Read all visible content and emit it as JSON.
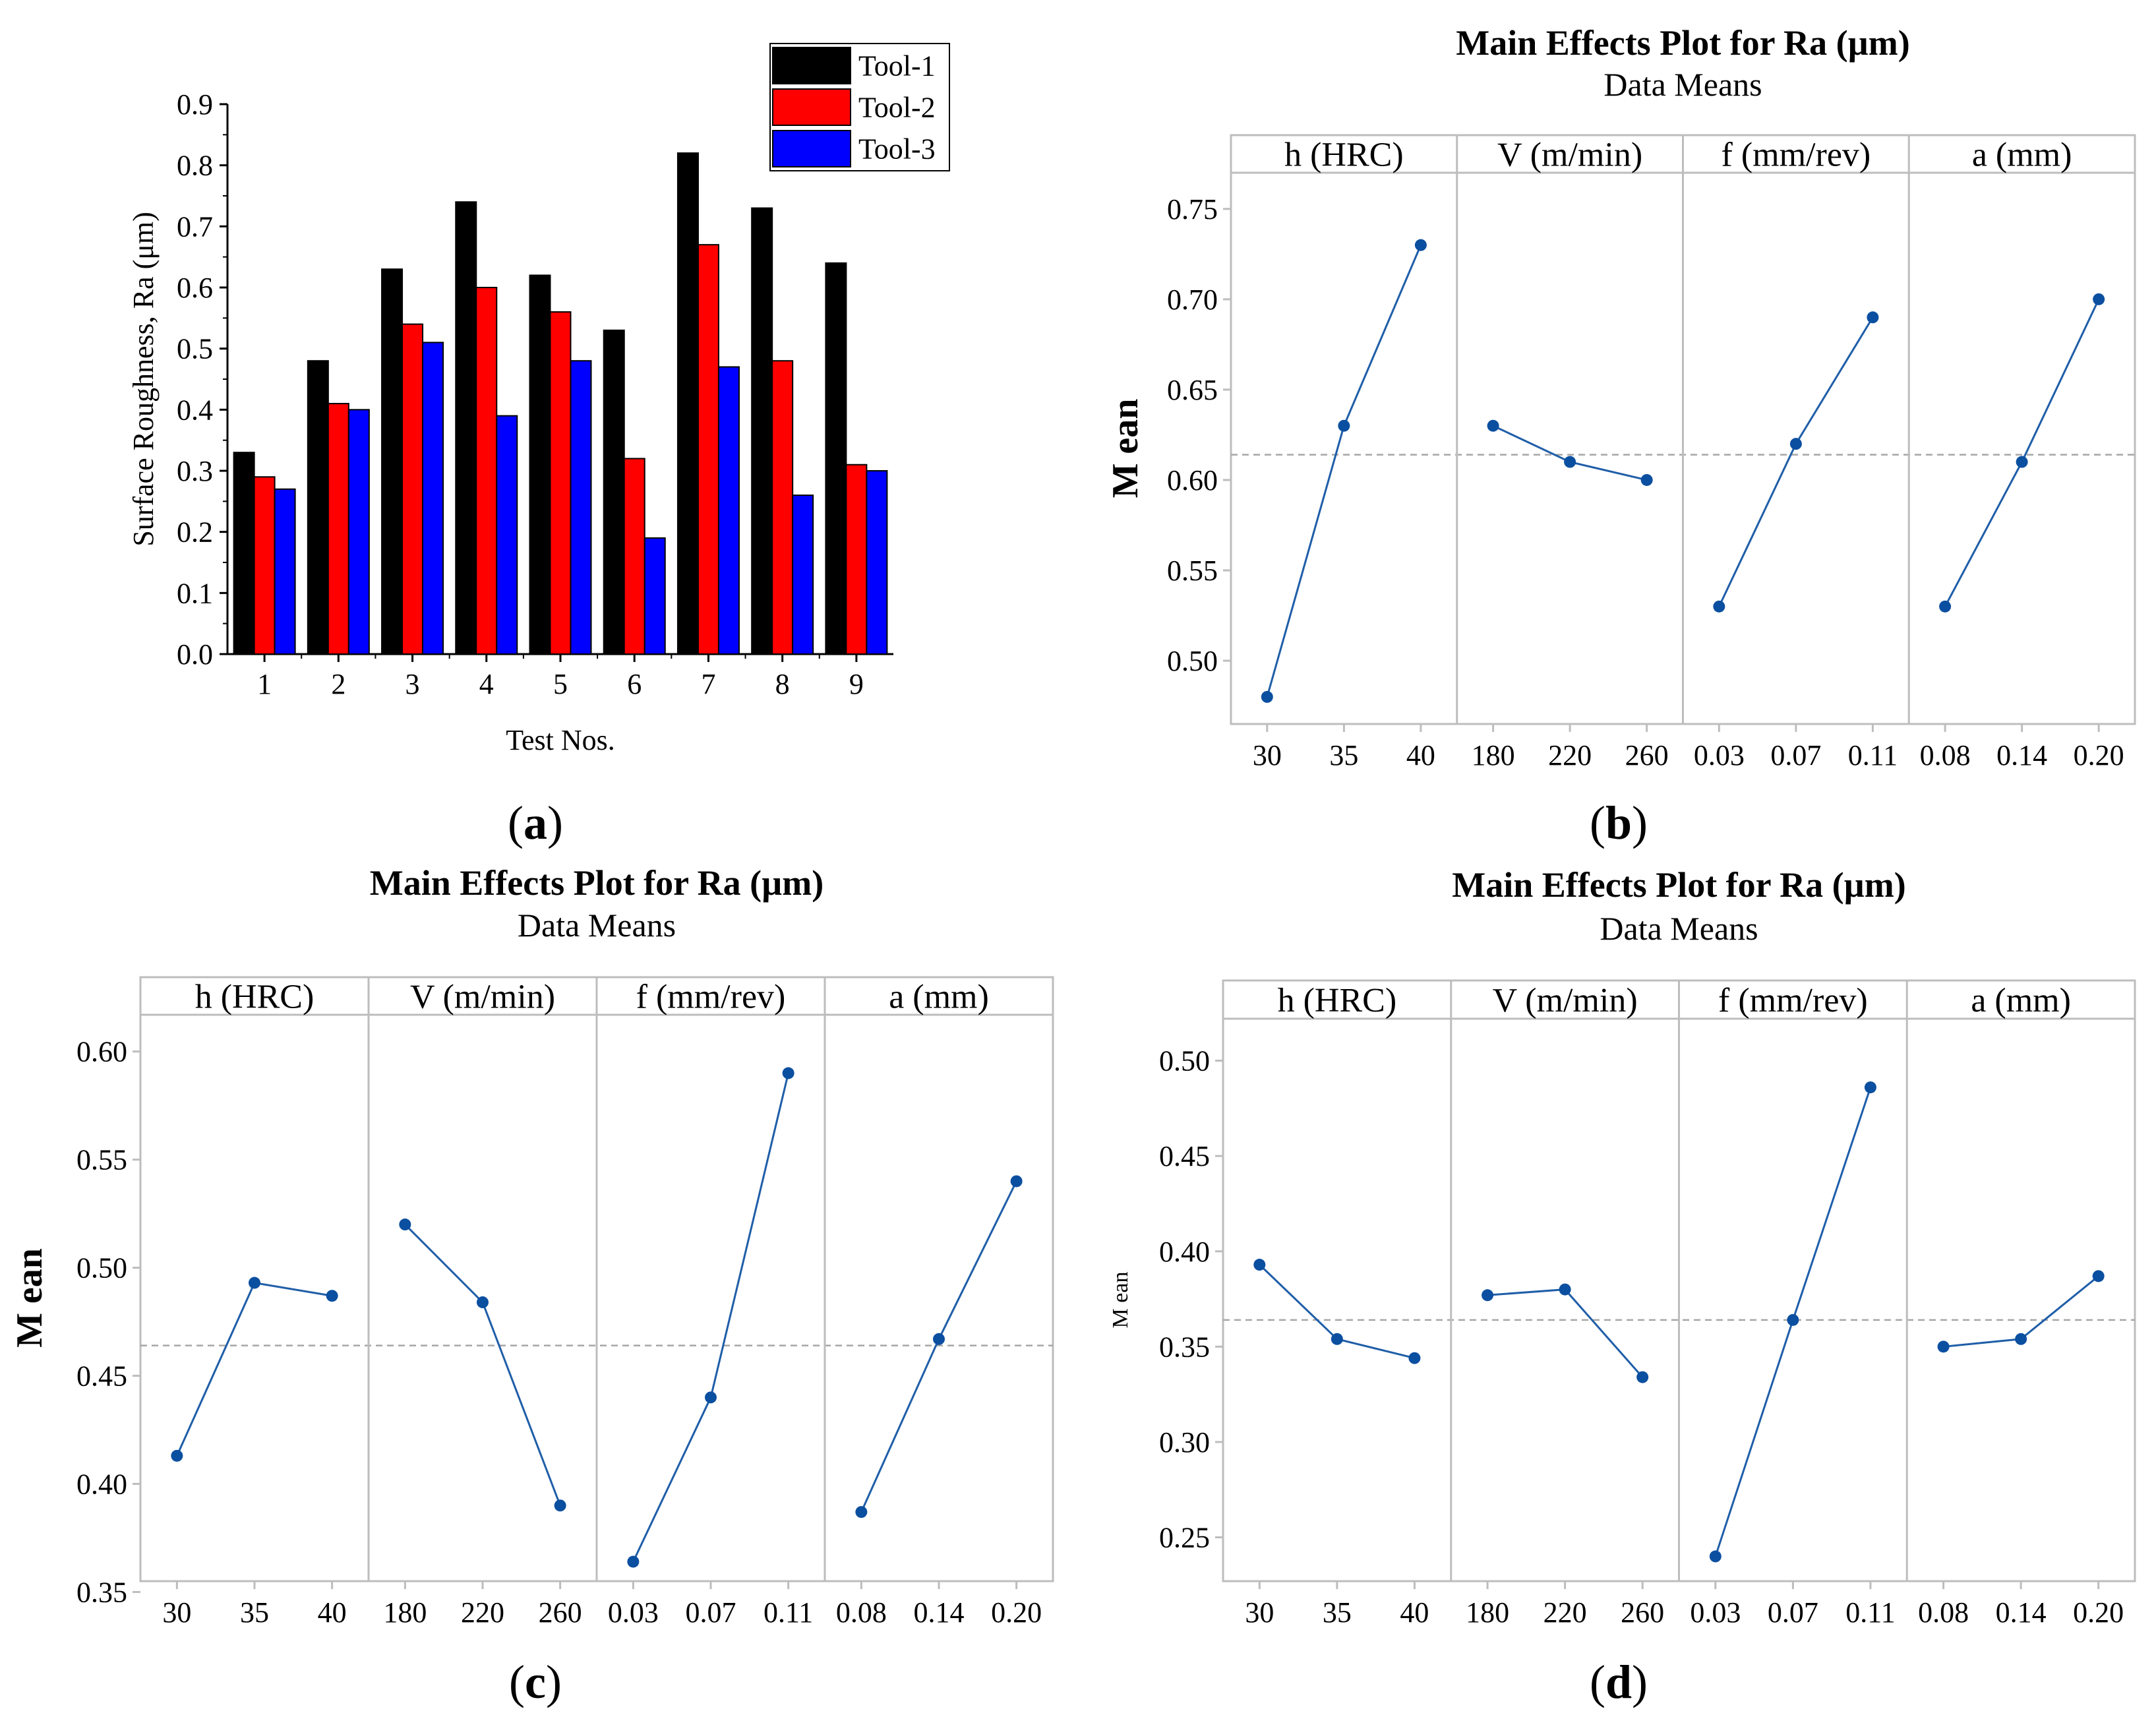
{
  "figure": {
    "captions": [
      {
        "letter": "a",
        "open": "(",
        "close": ")"
      },
      {
        "letter": "b",
        "open": "(",
        "close": ")"
      },
      {
        "letter": "c",
        "open": "(",
        "close": ")"
      },
      {
        "letter": "d",
        "open": "(",
        "close": ")"
      }
    ]
  },
  "colors": {
    "tool1": "#000000",
    "tool2": "#ff0000",
    "tool3": "#0000ff",
    "line": "#1f5ea8",
    "point": "#0b4fa0",
    "frame": "#bdbdbd",
    "ref": "#a6a6a6"
  },
  "chart_data": [
    {
      "id": "a",
      "type": "bar",
      "title": "",
      "xlabel": "Test Nos.",
      "ylabel": "Surface Roughness, Ra (μm)",
      "categories": [
        "1",
        "2",
        "3",
        "4",
        "5",
        "6",
        "7",
        "8",
        "9"
      ],
      "ylim": [
        0,
        0.9
      ],
      "yticks": [
        "0.0",
        "0.1",
        "0.2",
        "0.3",
        "0.4",
        "0.5",
        "0.6",
        "0.7",
        "0.8",
        "0.9"
      ],
      "legend": "top-right",
      "series": [
        {
          "name": "Tool-1",
          "values": [
            0.33,
            0.48,
            0.63,
            0.74,
            0.62,
            0.53,
            0.82,
            0.73,
            0.64
          ]
        },
        {
          "name": "Tool-2",
          "values": [
            0.29,
            0.41,
            0.54,
            0.6,
            0.56,
            0.32,
            0.67,
            0.48,
            0.31
          ]
        },
        {
          "name": "Tool-3",
          "values": [
            0.27,
            0.4,
            0.51,
            0.39,
            0.48,
            0.19,
            0.47,
            0.26,
            0.3
          ]
        }
      ]
    },
    {
      "id": "b",
      "type": "line",
      "title": "Main Effects Plot for Ra (µm)",
      "subtitle": "Data Means",
      "ylabel": "M ean",
      "ylim": [
        0.465,
        0.77
      ],
      "yticks": [
        "0.50",
        "0.55",
        "0.60",
        "0.65",
        "0.70",
        "0.75"
      ],
      "ref": 0.614,
      "panels": [
        {
          "name": "h (HRC)",
          "x": [
            "30",
            "35",
            "40"
          ],
          "y": [
            0.48,
            0.63,
            0.73
          ]
        },
        {
          "name": "V (m/min)",
          "x": [
            "180",
            "220",
            "260"
          ],
          "y": [
            0.63,
            0.61,
            0.6
          ]
        },
        {
          "name": "f (mm/rev)",
          "x": [
            "0.03",
            "0.07",
            "0.11"
          ],
          "y": [
            0.53,
            0.62,
            0.69
          ]
        },
        {
          "name": "a (mm)",
          "x": [
            "0.08",
            "0.14",
            "0.20"
          ],
          "y": [
            0.53,
            0.61,
            0.7
          ]
        }
      ]
    },
    {
      "id": "c",
      "type": "line",
      "title": "Main Effects Plot for Ra (µm)",
      "subtitle": "Data Means",
      "ylabel": "M ean",
      "ylim": [
        0.355,
        0.617
      ],
      "yticks": [
        "0.35",
        "0.40",
        "0.45",
        "0.50",
        "0.55",
        "0.60"
      ],
      "ref": 0.464,
      "panels": [
        {
          "name": "h (HRC)",
          "x": [
            "30",
            "35",
            "40"
          ],
          "y": [
            0.413,
            0.493,
            0.487
          ]
        },
        {
          "name": "V (m/min)",
          "x": [
            "180",
            "220",
            "260"
          ],
          "y": [
            0.52,
            0.484,
            0.39
          ]
        },
        {
          "name": "f (mm/rev)",
          "x": [
            "0.03",
            "0.07",
            "0.11"
          ],
          "y": [
            0.364,
            0.44,
            0.59
          ]
        },
        {
          "name": "a (mm)",
          "x": [
            "0.08",
            "0.14",
            "0.20"
          ],
          "y": [
            0.387,
            0.467,
            0.54
          ]
        }
      ]
    },
    {
      "id": "d",
      "type": "line",
      "title": "Main Effects Plot for Ra (µm)",
      "subtitle": "Data Means",
      "ylabel": "M ean",
      "ylim": [
        0.227,
        0.522
      ],
      "yticks": [
        "0.25",
        "0.30",
        "0.35",
        "0.40",
        "0.45",
        "0.50"
      ],
      "ref": 0.364,
      "panels": [
        {
          "name": "h (HRC)",
          "x": [
            "30",
            "35",
            "40"
          ],
          "y": [
            0.393,
            0.354,
            0.344
          ]
        },
        {
          "name": "V (m/min)",
          "x": [
            "180",
            "220",
            "260"
          ],
          "y": [
            0.377,
            0.38,
            0.334
          ]
        },
        {
          "name": "f (mm/rev)",
          "x": [
            "0.03",
            "0.07",
            "0.11"
          ],
          "y": [
            0.24,
            0.364,
            0.486
          ]
        },
        {
          "name": "a (mm)",
          "x": [
            "0.08",
            "0.14",
            "0.20"
          ],
          "y": [
            0.35,
            0.354,
            0.387
          ]
        }
      ]
    }
  ]
}
